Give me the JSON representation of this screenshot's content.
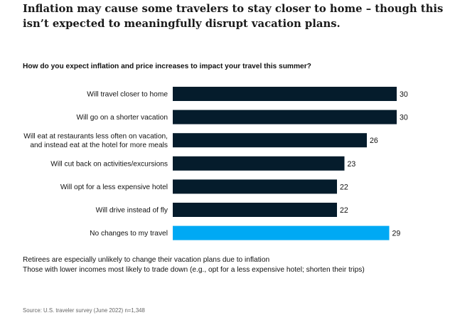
{
  "headline": "Inflation may cause some travelers to stay closer to home – though this isn’t expected to meaningfully disrupt vacation plans.",
  "notes": [
    "Retirees are especially unlikely to change their vacation plans due to inflation",
    "Those with lower incomes most likely to trade down (e.g., opt for a less expensive hotel; shorten their trips)"
  ],
  "source": "Source: U.S. traveler survey (June 2022) n=1,348",
  "colors": {
    "bar": "#051c2c",
    "highlight": "#00a9f4"
  },
  "chart_data": {
    "type": "bar",
    "orientation": "horizontal",
    "title": "How do you expect inflation and price increases to impact your travel this summer?",
    "categories": [
      [
        "Will travel closer to home"
      ],
      [
        "Will go on a shorter vacation"
      ],
      [
        "Will eat at restaurants less often on vacation,",
        "and instead eat at the hotel for more meals"
      ],
      [
        "Will cut back on activities/excursions"
      ],
      [
        "Will opt for a less expensive hotel"
      ],
      [
        "Will drive instead of fly"
      ],
      [
        "No changes to my travel"
      ]
    ],
    "values": [
      30,
      30,
      26,
      23,
      22,
      22,
      29
    ],
    "highlight_index": 6,
    "xlim": [
      0,
      30
    ],
    "grid": false,
    "legend": "none"
  }
}
